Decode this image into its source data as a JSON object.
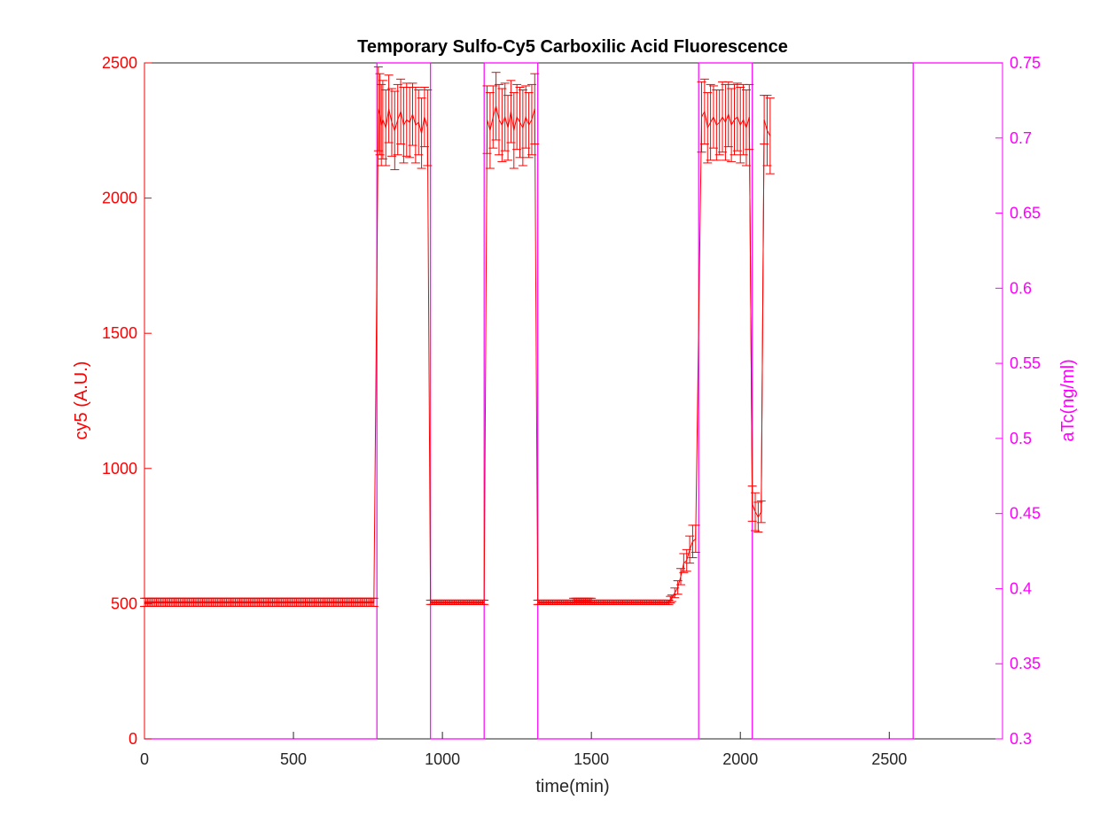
{
  "chart_data": {
    "type": "line",
    "title": "Temporary Sulfo-Cy5 Carboxilic Acid Fluorescence",
    "xlabel": "time(min)",
    "ylabel_left": "cy5 (A.U.)",
    "ylabel_right": "aTc(ng/ml)",
    "xlim": [
      0,
      2880
    ],
    "ylim_left": [
      0,
      2500
    ],
    "ylim_right": [
      0.3,
      0.75
    ],
    "xticks": [
      "0",
      "500",
      "1000",
      "1500",
      "2000",
      "2500"
    ],
    "yticks_left": [
      "0",
      "500",
      "1000",
      "1500",
      "2000",
      "2500"
    ],
    "yticks_right": [
      "0.3",
      "0.35",
      "0.4",
      "0.45",
      "0.5",
      "0.55",
      "0.6",
      "0.65",
      "0.7",
      "0.75"
    ],
    "grid": false,
    "colors": {
      "left_axis": "#ff0000",
      "right_axis": "#ff00ff",
      "title": "#000000",
      "xaxis": "#262626"
    },
    "series": [
      {
        "name": "cy5",
        "axis": "left",
        "color": "#ff0000",
        "style": "line with error bars",
        "segments": [
          {
            "x_start": 0,
            "x_end": 770,
            "dx": 5,
            "y": 505,
            "err": 15
          },
          {
            "x_start": 960,
            "x_end": 1140,
            "dx": 5,
            "y": 505,
            "err": 8
          },
          {
            "x_start": 1320,
            "x_end": 1760,
            "dx": 5,
            "y": 505,
            "err": 8
          },
          {
            "x_start": 1440,
            "x_end": 1500,
            "dx": 5,
            "y": 512,
            "err": 8
          }
        ],
        "points": [
          [
            785,
            2330,
            155
          ],
          [
            790,
            2310,
            150
          ],
          [
            795,
            2270,
            150
          ],
          [
            800,
            2290,
            145
          ],
          [
            810,
            2260,
            140
          ],
          [
            820,
            2330,
            125
          ],
          [
            830,
            2280,
            125
          ],
          [
            840,
            2250,
            145
          ],
          [
            850,
            2290,
            130
          ],
          [
            860,
            2320,
            120
          ],
          [
            870,
            2270,
            140
          ],
          [
            880,
            2290,
            135
          ],
          [
            890,
            2280,
            130
          ],
          [
            900,
            2310,
            115
          ],
          [
            910,
            2270,
            140
          ],
          [
            920,
            2280,
            120
          ],
          [
            930,
            2240,
            130
          ],
          [
            940,
            2300,
            110
          ],
          [
            950,
            2260,
            140
          ],
          [
            1150,
            2290,
            125
          ],
          [
            1160,
            2250,
            140
          ],
          [
            1170,
            2300,
            115
          ],
          [
            1180,
            2340,
            125
          ],
          [
            1190,
            2290,
            130
          ],
          [
            1200,
            2270,
            135
          ],
          [
            1210,
            2300,
            125
          ],
          [
            1220,
            2260,
            120
          ],
          [
            1230,
            2320,
            115
          ],
          [
            1240,
            2250,
            140
          ],
          [
            1250,
            2300,
            120
          ],
          [
            1260,
            2280,
            130
          ],
          [
            1270,
            2260,
            140
          ],
          [
            1280,
            2300,
            115
          ],
          [
            1290,
            2270,
            120
          ],
          [
            1300,
            2290,
            130
          ],
          [
            1310,
            2330,
            130
          ],
          [
            1765,
            515,
            12
          ],
          [
            1770,
            520,
            12
          ],
          [
            1780,
            540,
            18
          ],
          [
            1790,
            560,
            25
          ],
          [
            1800,
            600,
            30
          ],
          [
            1810,
            650,
            35
          ],
          [
            1820,
            660,
            40
          ],
          [
            1830,
            700,
            50
          ],
          [
            1840,
            730,
            60
          ],
          [
            1850,
            740,
            50
          ],
          [
            1870,
            2300,
            130
          ],
          [
            1880,
            2320,
            120
          ],
          [
            1890,
            2260,
            130
          ],
          [
            1900,
            2280,
            140
          ],
          [
            1910,
            2300,
            115
          ],
          [
            1920,
            2270,
            130
          ],
          [
            1930,
            2280,
            120
          ],
          [
            1940,
            2300,
            130
          ],
          [
            1950,
            2280,
            140
          ],
          [
            1960,
            2310,
            120
          ],
          [
            1970,
            2270,
            135
          ],
          [
            1980,
            2290,
            130
          ],
          [
            1990,
            2300,
            125
          ],
          [
            2000,
            2270,
            140
          ],
          [
            2010,
            2290,
            130
          ],
          [
            2020,
            2260,
            140
          ],
          [
            2030,
            2300,
            120
          ],
          [
            2040,
            870,
            65
          ],
          [
            2050,
            840,
            70
          ],
          [
            2060,
            820,
            55
          ],
          [
            2070,
            840,
            40
          ],
          [
            2080,
            2290,
            90
          ],
          [
            2090,
            2250,
            130
          ],
          [
            2100,
            2230,
            140
          ]
        ]
      },
      {
        "name": "aTc",
        "axis": "right",
        "color": "#ff00ff",
        "style": "step",
        "x": [
          0,
          780,
          780,
          960,
          960,
          1140,
          1140,
          1320,
          1320,
          1860,
          1860,
          2040,
          2040,
          2580,
          2580,
          2880
        ],
        "y": [
          0.3,
          0.3,
          0.75,
          0.75,
          0.3,
          0.3,
          0.75,
          0.75,
          0.3,
          0.3,
          0.75,
          0.75,
          0.3,
          0.3,
          0.75,
          0.75
        ]
      }
    ]
  }
}
